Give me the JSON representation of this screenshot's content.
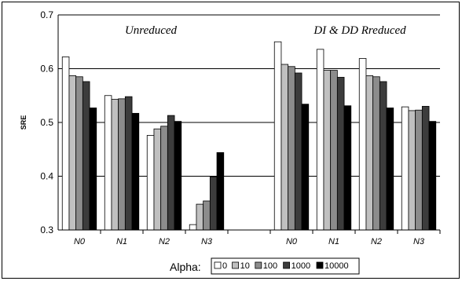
{
  "chart_data": {
    "type": "bar",
    "ylabel": "SRE",
    "ylim": [
      0.3,
      0.7
    ],
    "yticks": [
      "0.3",
      "0.4",
      "0.5",
      "0.6",
      "0.7"
    ],
    "grid": "horizontal",
    "legend": {
      "title": "Alpha:",
      "placement": "bottom-center",
      "entries": [
        "0",
        "10",
        "100",
        "1000",
        "10000"
      ]
    },
    "series_colors": [
      "#ffffff",
      "#c0c0c0",
      "#8c8c8c",
      "#3c3c3c",
      "#000000"
    ],
    "groups": [
      {
        "annotation": "Unreduced",
        "categories": [
          "N0",
          "N1",
          "N2",
          "N3"
        ],
        "values": [
          [
            0.622,
            0.587,
            0.585,
            0.576,
            0.527
          ],
          [
            0.55,
            0.543,
            0.544,
            0.548,
            0.517
          ],
          [
            0.476,
            0.488,
            0.493,
            0.513,
            0.502
          ],
          [
            0.31,
            0.348,
            0.354,
            0.399,
            0.444
          ]
        ]
      },
      {
        "annotation": "DI & DD Rreduced",
        "categories": [
          "N0",
          "N1",
          "N2",
          "N3"
        ],
        "values": [
          [
            0.65,
            0.608,
            0.604,
            0.592,
            0.534
          ],
          [
            0.636,
            0.597,
            0.597,
            0.584,
            0.531
          ],
          [
            0.619,
            0.587,
            0.585,
            0.576,
            0.527
          ],
          [
            0.529,
            0.522,
            0.523,
            0.53,
            0.502
          ]
        ]
      }
    ]
  }
}
